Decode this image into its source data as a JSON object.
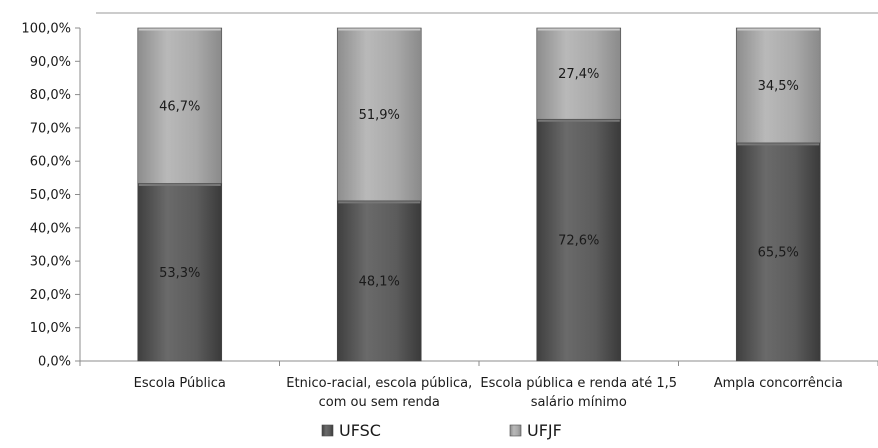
{
  "chart_data": {
    "type": "bar",
    "stacked": true,
    "normalized": true,
    "categories": [
      [
        "Escola Pública"
      ],
      [
        "Etnico-racial, escola pública,",
        "com ou sem renda"
      ],
      [
        "Escola pública e renda até 1,5",
        "salário mínimo"
      ],
      [
        "Ampla concorrência"
      ]
    ],
    "series": [
      {
        "name": "UFSC",
        "values": [
          53.3,
          48.1,
          72.6,
          65.5
        ],
        "labels": [
          "53,3%",
          "48,1%",
          "72,6%",
          "65,5%"
        ],
        "color": "#5a5a5a"
      },
      {
        "name": "UFJF",
        "values": [
          46.7,
          51.9,
          27.4,
          34.5
        ],
        "labels": [
          "46,7%",
          "51,9%",
          "27,4%",
          "34,5%"
        ],
        "color": "#a6a6a6"
      }
    ],
    "yticks": [
      "0,0%",
      "10,0%",
      "20,0%",
      "30,0%",
      "40,0%",
      "50,0%",
      "60,0%",
      "70,0%",
      "80,0%",
      "90,0%",
      "100,0%"
    ],
    "ylim": [
      0,
      100
    ],
    "grid": false,
    "legend_position": "bottom",
    "title": "",
    "xlabel": "",
    "ylabel": ""
  }
}
